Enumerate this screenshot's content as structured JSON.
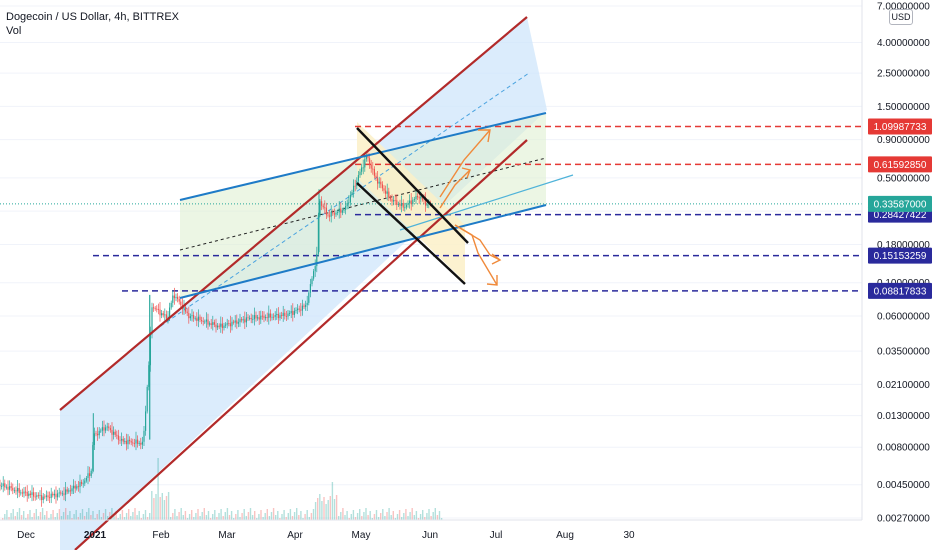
{
  "legend": {
    "title": "Dogecoin / US Dollar, 4h, BITTREX",
    "sub": "Vol"
  },
  "currency_label": "USD",
  "colors": {
    "channel_red": "#b22a2a",
    "channel_blue": "#1e7bc7",
    "fill_blue": "#cfe6fb",
    "fill_green": "#dff0d2",
    "fill_yellow": "#fbf0c8",
    "level_red": "#e53935",
    "level_navy": "#2a2a9c",
    "arrow_orange": "#f08a3b",
    "current_teal": "#26a69a",
    "candle_up": "#26a69a",
    "candle_down": "#ef5350"
  },
  "chart_data": {
    "type": "candlestick",
    "symbol": "Dogecoin / US Dollar",
    "interval": "4h",
    "exchange": "BITTREX",
    "y_scale": "log",
    "x_ticks": [
      "Dec",
      "2021",
      "Feb",
      "Mar",
      "Apr",
      "May",
      "Jun",
      "Jul",
      "Aug",
      "30"
    ],
    "y_ticks": [
      "7.00000000",
      "4.00000000",
      "2.50000000",
      "1.50000000",
      "0.90000000",
      "0.50000000",
      "0.30000000",
      "0.18000000",
      "0.10000000",
      "0.06000000",
      "0.03500000",
      "0.02100000",
      "0.01300000",
      "0.00800000",
      "0.00450000",
      "0.00270000"
    ],
    "ylim": [
      0.0027,
      7.0
    ],
    "current_price": "0.33587000",
    "horizontal_levels": [
      {
        "value": "1.09987733",
        "color": "red",
        "style": "dashed"
      },
      {
        "value": "0.61592850",
        "color": "red",
        "style": "dashed"
      },
      {
        "value": "0.28427422",
        "color": "navy",
        "style": "dashed"
      },
      {
        "value": "0.15153259",
        "color": "navy",
        "style": "dashed"
      },
      {
        "value": "0.08817833",
        "color": "navy",
        "style": "dashed"
      }
    ],
    "price_path": [
      [
        "Nov 20",
        0.0045
      ],
      [
        "Nov 30",
        0.004
      ],
      [
        "Dec 10",
        0.0037
      ],
      [
        "Dec 20",
        0.004
      ],
      [
        "Dec 28",
        0.0046
      ],
      [
        "Jan 1",
        0.0055
      ],
      [
        "Jan 2",
        0.0095
      ],
      [
        "Jan 8",
        0.011
      ],
      [
        "Jan 15",
        0.0088
      ],
      [
        "Jan 25",
        0.0085
      ],
      [
        "Jan 28",
        0.035
      ],
      [
        "Jan 29",
        0.07
      ],
      [
        "Feb 5",
        0.058
      ],
      [
        "Feb 8",
        0.084
      ],
      [
        "Feb 15",
        0.06
      ],
      [
        "Mar 1",
        0.051
      ],
      [
        "Mar 15",
        0.058
      ],
      [
        "Apr 1",
        0.061
      ],
      [
        "Apr 10",
        0.07
      ],
      [
        "Apr 15",
        0.15
      ],
      [
        "Apr 16",
        0.36
      ],
      [
        "Apr 20",
        0.28
      ],
      [
        "Apr 28",
        0.31
      ],
      [
        "May 5",
        0.55
      ],
      [
        "May 8",
        0.7
      ],
      [
        "May 12",
        0.5
      ],
      [
        "May 19",
        0.36
      ],
      [
        "May 25",
        0.32
      ],
      [
        "Jun 1",
        0.38
      ],
      [
        "Jun 5",
        0.33
      ],
      [
        "Jun 7",
        0.336
      ]
    ]
  }
}
